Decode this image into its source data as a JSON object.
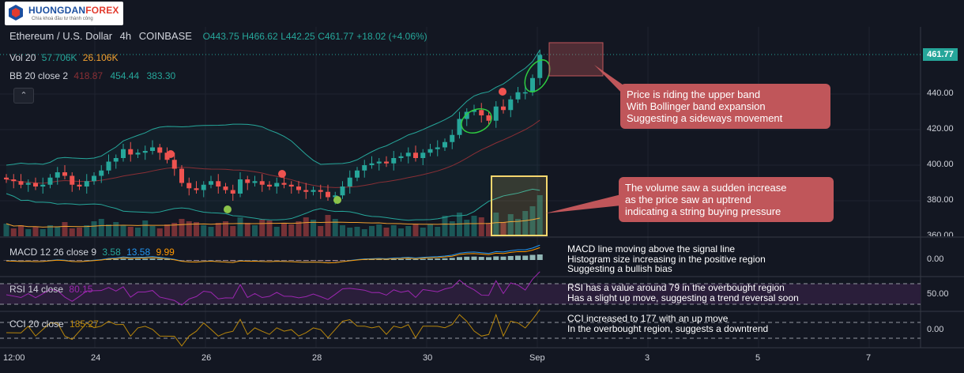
{
  "logo": {
    "brand_a": "HUONGDAN",
    "brand_b": "FOREX",
    "tagline": "Chìa khoá đầu tư thành công"
  },
  "header": {
    "symbol": "Ethereum / U.S. Dollar",
    "interval": "4h",
    "exchange": "COINBASE",
    "open": "O443.75",
    "high": "H466.62",
    "low": "L442.25",
    "close": "C461.77",
    "change": "+18.02 (+4.06%)"
  },
  "volume_legend": {
    "label": "Vol 20",
    "v1": "57.706K",
    "v2": "26.106K"
  },
  "bb_legend": {
    "label": "BB 20 close 2",
    "v1": "418.87",
    "v2": "454.44",
    "v3": "383.30"
  },
  "macd_legend": {
    "label": "MACD 12 26 close 9",
    "v1": "3.58",
    "v2": "13.58",
    "v3": "9.99"
  },
  "rsi_legend": {
    "label": "RSI 14 close",
    "v1": "80.15"
  },
  "cci_legend": {
    "label": "CCI 20 close",
    "v1": "185.27"
  },
  "price_tag": "461.77",
  "price_axis": [
    "440.00",
    "420.00",
    "400.00",
    "380.00",
    "360.00"
  ],
  "macd_axis": "0.00",
  "rsi_axis": "50.00",
  "cci_axis": "0.00",
  "time_axis": [
    "12:00",
    "24",
    "26",
    "28",
    "30",
    "Sep",
    "3",
    "5",
    "7"
  ],
  "notes": {
    "upper_band": [
      "Price is riding the upper band",
      "With Bollinger band expansion",
      "Suggesting a sideways movement"
    ],
    "volume": [
      "The volume saw a sudden increase",
      "as the price saw an uptrend",
      "indicating a string buying pressure"
    ]
  },
  "annotations": {
    "macd": [
      "MACD line moving above the signal line",
      "Histogram size increasing in the positive region",
      "Suggesting a bullish bias"
    ],
    "rsi": [
      "RSI has a value around 79 in the overbought region",
      "Has a slight up move, suggesting a trend reversal soon"
    ],
    "cci": [
      "CCI increased to 177 with an up move",
      "In the overbought region, suggests a downtrend"
    ]
  },
  "colors": {
    "up": "#26a69a",
    "down": "#ef5350",
    "background": "#131722",
    "note": "#c0565a",
    "highlight": "#f5d76e"
  },
  "chart_data": {
    "type": "candlestick",
    "series": [
      {
        "name": "price_close",
        "values": [
          392,
          391,
          389,
          390,
          388,
          389,
          393,
          396,
          394,
          389,
          388,
          391,
          394,
          397,
          402,
          404,
          409,
          406,
          407,
          408,
          410,
          407,
          403,
          398,
          390,
          387,
          386,
          389,
          391,
          388,
          386,
          384,
          392,
          390,
          391,
          389,
          388,
          390,
          389,
          388,
          386,
          385,
          386,
          385,
          382,
          383,
          388,
          393,
          397,
          400,
          401,
          402,
          401,
          404,
          405,
          407,
          404,
          407,
          409,
          410,
          413,
          417,
          426,
          430,
          431,
          428,
          425,
          433,
          431,
          437,
          441,
          441,
          449,
          462
        ]
      },
      {
        "name": "volume",
        "values": [
          16,
          10,
          14,
          9,
          12,
          9,
          14,
          12,
          18,
          10,
          11,
          14,
          19,
          22,
          15,
          18,
          14,
          12,
          11,
          20,
          13,
          10,
          15,
          17,
          22,
          19,
          18,
          14,
          12,
          17,
          19,
          13,
          24,
          17,
          14,
          21,
          20,
          12,
          16,
          15,
          19,
          24,
          21,
          13,
          27,
          22,
          14,
          11,
          12,
          9,
          13,
          15,
          11,
          14,
          10,
          13,
          16,
          11,
          15,
          12,
          26,
          19,
          30,
          21,
          26,
          24,
          17,
          30,
          18,
          28,
          22,
          32,
          38,
          52
        ]
      }
    ]
  }
}
